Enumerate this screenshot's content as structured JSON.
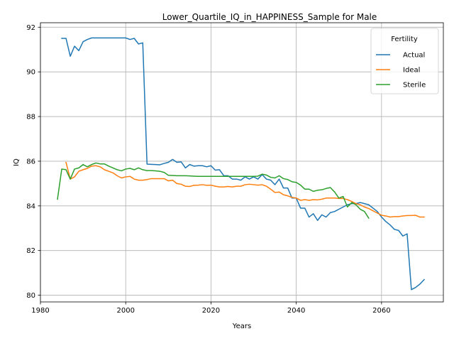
{
  "chart_data": {
    "type": "line",
    "title": "Lower_Quartile_IQ_in_HAPPINESS_Sample for Male",
    "xlabel": "Years",
    "ylabel": "IQ",
    "xlim": [
      1980,
      2074.5
    ],
    "ylim": [
      79.7,
      92.2
    ],
    "xticks": [
      1980,
      2000,
      2020,
      2040,
      2060
    ],
    "yticks": [
      80,
      82,
      84,
      86,
      88,
      90,
      92
    ],
    "grid": true,
    "legend": {
      "title": "Fertility",
      "position": "top-right"
    },
    "series": [
      {
        "name": "Actual",
        "color": "#1f77b4",
        "x": [
          1985,
          1986,
          1987,
          1988,
          1989,
          1990,
          1991,
          1992,
          1993,
          1994,
          1995,
          1996,
          1997,
          1998,
          1999,
          2000,
          2001,
          2002,
          2003,
          2004,
          2005,
          2006,
          2007,
          2008,
          2009,
          2010,
          2011,
          2012,
          2013,
          2014,
          2015,
          2016,
          2017,
          2018,
          2019,
          2020,
          2021,
          2022,
          2023,
          2024,
          2025,
          2026,
          2027,
          2028,
          2029,
          2030,
          2031,
          2032,
          2033,
          2034,
          2035,
          2036,
          2037,
          2038,
          2039,
          2040,
          2041,
          2042,
          2043,
          2044,
          2045,
          2046,
          2047,
          2048,
          2049,
          2050,
          2051,
          2052,
          2053,
          2054,
          2055,
          2056,
          2057,
          2058,
          2059,
          2060,
          2061,
          2062,
          2063,
          2064,
          2065,
          2066,
          2067,
          2068,
          2069,
          2070
        ],
        "values": [
          91.5,
          91.5,
          90.7,
          91.15,
          90.95,
          91.35,
          91.45,
          91.52,
          91.52,
          91.52,
          91.52,
          91.52,
          91.52,
          91.52,
          91.52,
          91.52,
          91.45,
          91.5,
          91.25,
          91.3,
          85.87,
          85.86,
          85.85,
          85.84,
          85.9,
          85.95,
          86.08,
          85.95,
          85.97,
          85.7,
          85.85,
          85.78,
          85.8,
          85.8,
          85.75,
          85.8,
          85.6,
          85.62,
          85.35,
          85.35,
          85.2,
          85.2,
          85.15,
          85.3,
          85.2,
          85.3,
          85.2,
          85.4,
          85.2,
          85.15,
          84.95,
          85.2,
          84.8,
          84.8,
          84.35,
          84.35,
          83.9,
          83.9,
          83.5,
          83.65,
          83.35,
          83.6,
          83.5,
          83.7,
          83.75,
          83.85,
          83.95,
          84.05,
          84.1,
          84.1,
          84.15,
          84.1,
          84.05,
          83.9,
          83.75,
          83.5,
          83.3,
          83.15,
          82.95,
          82.9,
          82.65,
          82.75,
          80.25,
          80.35,
          80.5,
          80.7
        ]
      },
      {
        "name": "Ideal",
        "color": "#ff7f0e",
        "x": [
          1986,
          1987,
          1988,
          1989,
          1990,
          1991,
          1992,
          1993,
          1994,
          1995,
          1996,
          1997,
          1998,
          1999,
          2000,
          2001,
          2002,
          2003,
          2004,
          2005,
          2006,
          2007,
          2008,
          2009,
          2010,
          2011,
          2012,
          2013,
          2014,
          2015,
          2016,
          2017,
          2018,
          2019,
          2020,
          2021,
          2022,
          2023,
          2024,
          2025,
          2026,
          2027,
          2028,
          2029,
          2030,
          2031,
          2032,
          2033,
          2034,
          2035,
          2036,
          2037,
          2038,
          2039,
          2040,
          2041,
          2042,
          2043,
          2044,
          2045,
          2046,
          2047,
          2048,
          2049,
          2050,
          2051,
          2052,
          2053,
          2054,
          2055,
          2056,
          2057,
          2058,
          2059,
          2060,
          2061,
          2062,
          2063,
          2064,
          2065,
          2066,
          2067,
          2068,
          2069,
          2070
        ],
        "values": [
          85.95,
          85.2,
          85.3,
          85.55,
          85.62,
          85.68,
          85.78,
          85.8,
          85.75,
          85.62,
          85.55,
          85.48,
          85.35,
          85.25,
          85.3,
          85.32,
          85.2,
          85.15,
          85.15,
          85.18,
          85.22,
          85.22,
          85.22,
          85.22,
          85.12,
          85.15,
          85.0,
          84.97,
          84.88,
          84.87,
          84.92,
          84.93,
          84.95,
          84.92,
          84.93,
          84.88,
          84.85,
          84.85,
          84.87,
          84.85,
          84.88,
          84.88,
          84.95,
          84.97,
          84.95,
          84.93,
          84.95,
          84.88,
          84.75,
          84.6,
          84.62,
          84.5,
          84.45,
          84.38,
          84.35,
          84.25,
          84.28,
          84.25,
          84.28,
          84.27,
          84.3,
          84.35,
          84.35,
          84.35,
          84.33,
          84.33,
          84.28,
          84.2,
          84.1,
          84.05,
          83.95,
          83.88,
          83.78,
          83.68,
          83.58,
          83.55,
          83.5,
          83.52,
          83.52,
          83.55,
          83.57,
          83.57,
          83.58,
          83.5,
          83.5
        ]
      },
      {
        "name": "Sterile",
        "color": "#2ca02c",
        "x": [
          1984,
          1985,
          1986,
          1987,
          1988,
          1989,
          1990,
          1991,
          1992,
          1993,
          1994,
          1995,
          1996,
          1997,
          1998,
          1999,
          2000,
          2001,
          2002,
          2003,
          2004,
          2005,
          2006,
          2007,
          2008,
          2009,
          2010,
          2011,
          2012,
          2013,
          2014,
          2015,
          2016,
          2017,
          2018,
          2019,
          2020,
          2021,
          2022,
          2023,
          2024,
          2025,
          2026,
          2027,
          2028,
          2029,
          2030,
          2031,
          2032,
          2033,
          2034,
          2035,
          2036,
          2037,
          2038,
          2039,
          2040,
          2041,
          2042,
          2043,
          2044,
          2045,
          2046,
          2047,
          2048,
          2049,
          2050,
          2051,
          2052,
          2053,
          2054,
          2055,
          2056,
          2057
        ],
        "values": [
          84.3,
          85.65,
          85.62,
          85.2,
          85.65,
          85.7,
          85.85,
          85.75,
          85.85,
          85.92,
          85.88,
          85.88,
          85.78,
          85.7,
          85.62,
          85.57,
          85.65,
          85.68,
          85.62,
          85.7,
          85.62,
          85.58,
          85.58,
          85.57,
          85.55,
          85.5,
          85.37,
          85.36,
          85.35,
          85.35,
          85.35,
          85.34,
          85.33,
          85.32,
          85.32,
          85.32,
          85.32,
          85.32,
          85.32,
          85.32,
          85.32,
          85.32,
          85.32,
          85.32,
          85.32,
          85.32,
          85.32,
          85.33,
          85.42,
          85.38,
          85.28,
          85.25,
          85.35,
          85.22,
          85.18,
          85.08,
          85.05,
          84.93,
          84.75,
          84.75,
          84.65,
          84.7,
          84.72,
          84.78,
          84.82,
          84.62,
          84.35,
          84.42,
          83.95,
          84.15,
          84.05,
          83.85,
          83.75,
          83.45
        ]
      }
    ]
  }
}
